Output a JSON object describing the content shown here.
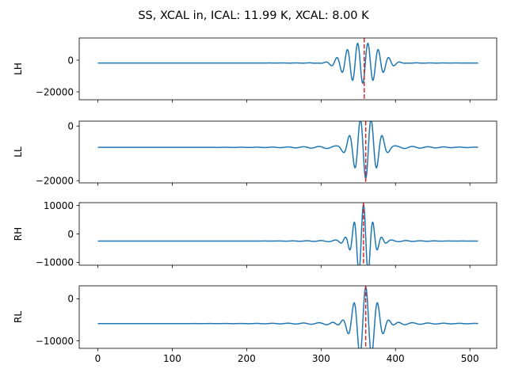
{
  "figure": {
    "title": "SS, XCAL in, ICAL: 11.99 K, XCAL: 8.00 K"
  },
  "colors": {
    "signal": "#1f77b4",
    "marker": "#d62728",
    "axes": "#000000"
  },
  "chart_data": [
    {
      "type": "line",
      "name": "LH",
      "ylabel": "LH",
      "xlim": [
        -25,
        536
      ],
      "ylim": [
        -25000,
        14000
      ],
      "yticks": [
        {
          "value": 0,
          "label": "0"
        },
        {
          "value": -20000,
          "label": "−20000"
        }
      ],
      "baseline": -1800,
      "peak_x": 356,
      "marker_x": 358,
      "wave": {
        "amp": 14000,
        "width": 20,
        "freq": 0.45,
        "phase": 3.14159
      },
      "sidelobes": {
        "amp": 1200,
        "decay": 0.03,
        "freq": 0.35
      },
      "x_range": [
        0,
        511
      ]
    },
    {
      "type": "line",
      "name": "LL",
      "ylabel": "LL",
      "xlim": [
        -25,
        536
      ],
      "ylim": [
        -20800,
        1800
      ],
      "yticks": [
        {
          "value": 0,
          "label": "0"
        },
        {
          "value": -20000,
          "label": "−20000"
        }
      ],
      "baseline": -7800,
      "peak_x": 360,
      "marker_x": 360,
      "wave": {
        "amp": 12500,
        "width": 14,
        "freq": 0.42,
        "phase": 3.14159
      },
      "sidelobes": {
        "amp": 1200,
        "decay": 0.02,
        "freq": 0.3
      },
      "x_range": [
        0,
        511
      ]
    },
    {
      "type": "line",
      "name": "RH",
      "ylabel": "RH",
      "xlim": [
        -25,
        536
      ],
      "ylim": [
        -11000,
        11000
      ],
      "yticks": [
        {
          "value": 10000,
          "label": "10000"
        },
        {
          "value": 0,
          "label": "0"
        },
        {
          "value": -10000,
          "label": "−10000"
        }
      ],
      "baseline": -2500,
      "peak_x": 357,
      "marker_x": 357,
      "wave": {
        "amp": 12000,
        "width": 12,
        "freq": 0.5,
        "phase": 0
      },
      "sidelobes": {
        "amp": 900,
        "decay": 0.03,
        "freq": 0.33
      },
      "x_range": [
        0,
        511
      ]
    },
    {
      "type": "line",
      "name": "RL",
      "ylabel": "RL",
      "xlim": [
        -25,
        536
      ],
      "ylim": [
        -11800,
        3100
      ],
      "yticks": [
        {
          "value": 0,
          "label": "0"
        },
        {
          "value": -10000,
          "label": "−10000"
        }
      ],
      "baseline": -5900,
      "peak_x": 360,
      "marker_x": 360,
      "wave": {
        "amp": 8000,
        "width": 16,
        "freq": 0.4,
        "phase": 0
      },
      "sidelobes": {
        "amp": 700,
        "decay": 0.02,
        "freq": 0.3
      },
      "x_range": [
        0,
        511
      ],
      "xticks": [
        {
          "value": 0,
          "label": "0"
        },
        {
          "value": 100,
          "label": "100"
        },
        {
          "value": 200,
          "label": "200"
        },
        {
          "value": 300,
          "label": "300"
        },
        {
          "value": 400,
          "label": "400"
        },
        {
          "value": 500,
          "label": "500"
        }
      ]
    }
  ]
}
